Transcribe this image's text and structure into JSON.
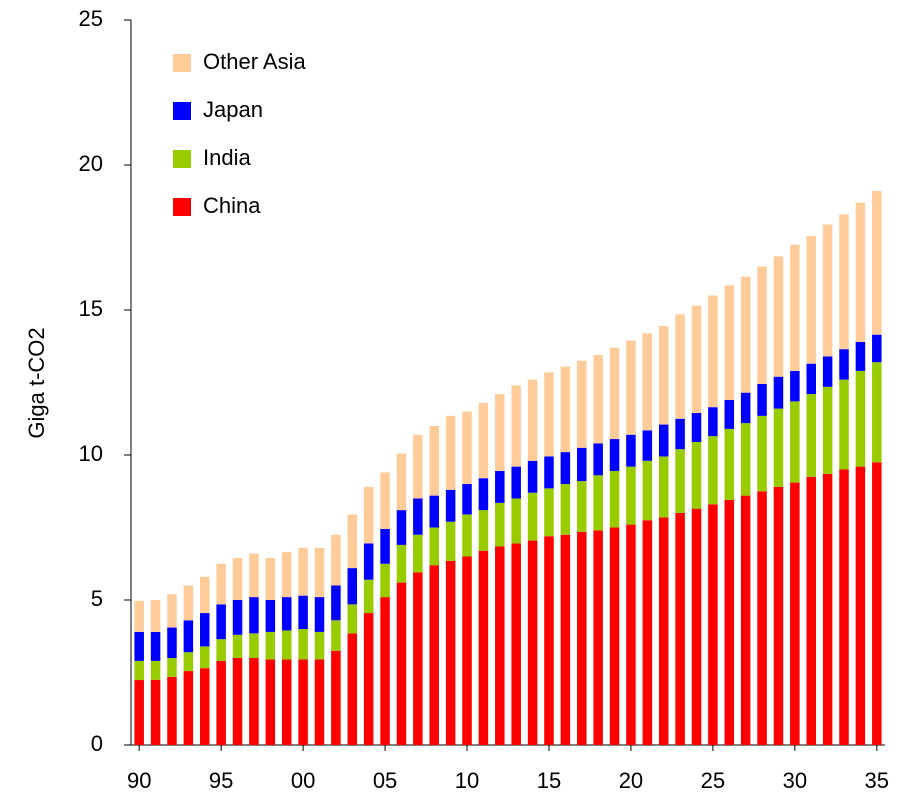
{
  "chart_data": {
    "type": "stacked_bar",
    "y_label": "Giga t-CO2",
    "categories": [
      "90",
      null,
      null,
      null,
      null,
      "95",
      null,
      null,
      null,
      null,
      "00",
      null,
      null,
      null,
      null,
      "05",
      null,
      null,
      null,
      null,
      "10",
      null,
      null,
      null,
      null,
      "15",
      null,
      null,
      null,
      null,
      "20",
      null,
      null,
      null,
      null,
      "25",
      null,
      null,
      null,
      null,
      "30",
      null,
      null,
      null,
      null,
      "35"
    ],
    "series": [
      {
        "name": "China",
        "color": "#ff0000",
        "values": [
          2.24,
          2.25,
          2.35,
          2.55,
          2.65,
          2.9,
          3.0,
          3.0,
          2.95,
          2.95,
          2.95,
          2.95,
          3.25,
          3.85,
          4.55,
          5.1,
          5.6,
          5.95,
          6.2,
          6.35,
          6.5,
          6.7,
          6.85,
          6.95,
          7.05,
          7.2,
          7.25,
          7.35,
          7.4,
          7.5,
          7.6,
          7.75,
          7.85,
          8.0,
          8.15,
          8.3,
          8.45,
          8.6,
          8.75,
          8.9,
          9.05,
          9.25,
          9.35,
          9.5,
          9.6,
          9.75
        ]
      },
      {
        "name": "India",
        "color": "#99cc00",
        "values": [
          0.66,
          0.65,
          0.65,
          0.65,
          0.75,
          0.75,
          0.8,
          0.85,
          0.95,
          1.0,
          1.05,
          0.95,
          1.05,
          1.0,
          1.15,
          1.15,
          1.3,
          1.3,
          1.3,
          1.35,
          1.45,
          1.4,
          1.5,
          1.55,
          1.65,
          1.65,
          1.75,
          1.75,
          1.9,
          1.95,
          2.0,
          2.05,
          2.1,
          2.2,
          2.3,
          2.35,
          2.45,
          2.5,
          2.6,
          2.7,
          2.8,
          2.85,
          3.0,
          3.1,
          3.3,
          3.45
        ]
      },
      {
        "name": "Japan",
        "color": "#0000ff",
        "values": [
          1.0,
          1.0,
          1.05,
          1.1,
          1.15,
          1.2,
          1.2,
          1.25,
          1.1,
          1.15,
          1.15,
          1.2,
          1.2,
          1.25,
          1.25,
          1.2,
          1.2,
          1.25,
          1.1,
          1.1,
          1.05,
          1.1,
          1.1,
          1.1,
          1.1,
          1.1,
          1.1,
          1.15,
          1.1,
          1.1,
          1.1,
          1.05,
          1.1,
          1.05,
          1.0,
          1.0,
          1.0,
          1.05,
          1.1,
          1.1,
          1.05,
          1.05,
          1.05,
          1.05,
          1.0,
          0.95
        ]
      },
      {
        "name": "Other Asia",
        "color": "#ffcc99",
        "values": [
          1.07,
          1.1,
          1.15,
          1.2,
          1.25,
          1.4,
          1.45,
          1.5,
          1.45,
          1.55,
          1.65,
          1.7,
          1.75,
          1.85,
          1.95,
          1.95,
          1.95,
          2.2,
          2.4,
          2.55,
          2.5,
          2.6,
          2.65,
          2.8,
          2.8,
          2.9,
          2.95,
          3.0,
          3.05,
          3.15,
          3.25,
          3.35,
          3.4,
          3.6,
          3.7,
          3.85,
          3.95,
          4.0,
          4.05,
          4.15,
          4.35,
          4.4,
          4.55,
          4.65,
          4.8,
          4.95
        ]
      }
    ],
    "ylim": [
      0,
      25
    ],
    "yticks": [
      0,
      5,
      10,
      15,
      20,
      25
    ],
    "grid": false,
    "legend": "upper-left"
  }
}
